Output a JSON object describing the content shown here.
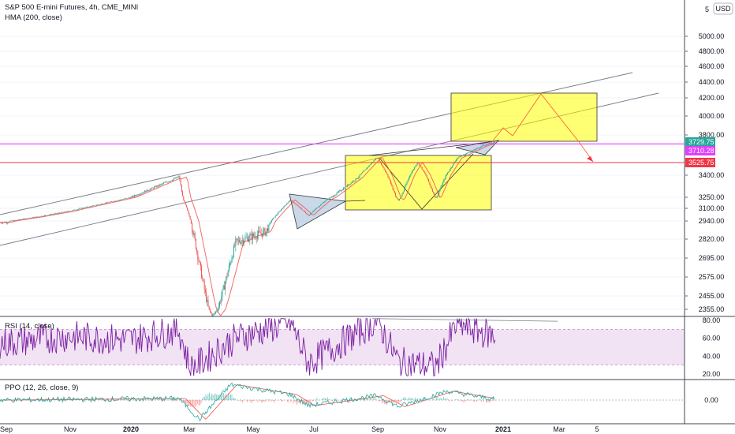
{
  "header": {
    "title": "S&P 500 E-mini Futures, 4h, CME_MINI",
    "indicator": "HMA (200, close)",
    "currency": "USD",
    "settings_text": "5"
  },
  "rsi_panel": {
    "label": "RSI (14, close)"
  },
  "ppo_panel": {
    "label": "PPO (12, 26, close, 9)"
  },
  "x_axis": {
    "labels": [
      "Sep",
      "Nov",
      "2020",
      "Mar",
      "May",
      "Jul",
      "Sep",
      "Nov",
      "2021",
      "Mar",
      "5"
    ],
    "bold": [
      "2020",
      "2021"
    ]
  },
  "price_axis": {
    "ticks": [
      "5000.00",
      "4800.00",
      "4600.00",
      "4400.00",
      "4200.00",
      "4000.00",
      "3800.00",
      "3400.00",
      "3250.00",
      "3100.00",
      "2940.00",
      "2820.00",
      "2695.00",
      "2575.00",
      "2455.00",
      "2355.00"
    ],
    "top_label": "5"
  },
  "rsi_axis": {
    "ticks": [
      "80.00",
      "60.00",
      "40.00",
      "20.00"
    ]
  },
  "ppo_axis": {
    "ticks": [
      "0.00"
    ]
  },
  "price_badges": [
    {
      "value": "3729.75",
      "bg": "#26a69a",
      "fg": "#ffffff"
    },
    {
      "value": "3710.28",
      "bg": "#e040fb",
      "fg": "#ffffff"
    },
    {
      "value": "3525.75",
      "bg": "#f23645",
      "fg": "#ffffff"
    }
  ],
  "colors": {
    "up": "#26a69a",
    "down": "#ef5350",
    "hma": "#ef5350",
    "rsi": "#7b1fa2",
    "rsi_band": "#e1bee7",
    "ppo": "#26a69a",
    "ppo_signal": "#ef5350",
    "horizontal_magenta": "#e040fb",
    "horizontal_red": "#f23645",
    "projection": "#ff7043",
    "box_fill": "#ffff00",
    "triangle_fill": "#b3c7de"
  },
  "chart_data": {
    "type": "candlestick",
    "symbol": "S&P 500 E-mini Futures",
    "timeframe": "4h",
    "indicators": [
      "HMA (200, close)",
      "RSI (14, close)",
      "PPO (12, 26, close, 9)"
    ],
    "price_path": [
      {
        "x": "2019-09-01",
        "y": 2930
      },
      {
        "x": "2019-10-01",
        "y": 2990
      },
      {
        "x": "2019-11-01",
        "y": 3060
      },
      {
        "x": "2019-12-01",
        "y": 3150
      },
      {
        "x": "2020-01-01",
        "y": 3245
      },
      {
        "x": "2020-02-19",
        "y": 3390
      },
      {
        "x": "2020-03-01",
        "y": 2960
      },
      {
        "x": "2020-03-23",
        "y": 2230
      },
      {
        "x": "2020-04-15",
        "y": 2800
      },
      {
        "x": "2020-05-15",
        "y": 2870
      },
      {
        "x": "2020-06-08",
        "y": 3215
      },
      {
        "x": "2020-06-26",
        "y": 3010
      },
      {
        "x": "2020-07-15",
        "y": 3230
      },
      {
        "x": "2020-08-15",
        "y": 3390
      },
      {
        "x": "2020-09-02",
        "y": 3580
      },
      {
        "x": "2020-09-23",
        "y": 3210
      },
      {
        "x": "2020-10-12",
        "y": 3530
      },
      {
        "x": "2020-10-30",
        "y": 3240
      },
      {
        "x": "2020-11-20",
        "y": 3570
      },
      {
        "x": "2020-12-15",
        "y": 3690
      },
      {
        "x": "2020-12-28",
        "y": 3730
      }
    ],
    "last_price": 3729.75,
    "horizontal_lines": [
      3710.28,
      3525.75
    ],
    "y_ticks": [
      5000,
      4800,
      4600,
      4400,
      4200,
      4000,
      3800,
      3400,
      3250,
      3100,
      2940,
      2820,
      2695,
      2575,
      2455,
      2355
    ],
    "rsi_range": [
      20,
      80
    ],
    "rsi_band": [
      30,
      70
    ],
    "rsi_path": [
      {
        "x": "2019-09-01",
        "y": 55
      },
      {
        "x": "2019-11-01",
        "y": 62
      },
      {
        "x": "2020-01-01",
        "y": 58
      },
      {
        "x": "2020-02-19",
        "y": 70
      },
      {
        "x": "2020-03-01",
        "y": 25
      },
      {
        "x": "2020-04-15",
        "y": 60
      },
      {
        "x": "2020-06-08",
        "y": 78
      },
      {
        "x": "2020-06-26",
        "y": 32
      },
      {
        "x": "2020-09-02",
        "y": 80
      },
      {
        "x": "2020-09-23",
        "y": 33
      },
      {
        "x": "2020-10-30",
        "y": 28
      },
      {
        "x": "2020-11-20",
        "y": 76
      },
      {
        "x": "2020-12-28",
        "y": 62
      }
    ],
    "ppo_path": [
      {
        "x": "2019-09-01",
        "y": 0.0
      },
      {
        "x": "2020-02-19",
        "y": 0.3
      },
      {
        "x": "2020-03-10",
        "y": -3.5
      },
      {
        "x": "2020-04-10",
        "y": 2.8
      },
      {
        "x": "2020-06-08",
        "y": 1.0
      },
      {
        "x": "2020-06-26",
        "y": -1.0
      },
      {
        "x": "2020-09-02",
        "y": 0.8
      },
      {
        "x": "2020-09-23",
        "y": -1.2
      },
      {
        "x": "2020-11-10",
        "y": 1.6
      },
      {
        "x": "2020-12-28",
        "y": 0.1
      }
    ]
  }
}
